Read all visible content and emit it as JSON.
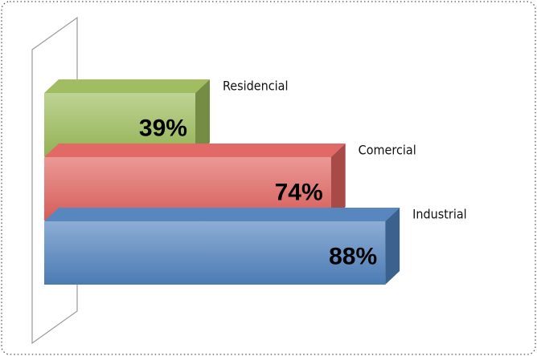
{
  "chart_data": {
    "type": "bar",
    "orientation": "horizontal",
    "three_d": true,
    "categories": [
      "Residencial",
      "Comercial",
      "Industrial"
    ],
    "values": [
      39,
      74,
      88
    ],
    "value_labels": [
      "39%",
      "74%",
      "88%"
    ],
    "colors": [
      "#9bbb59",
      "#e0625e",
      "#4f81bd"
    ]
  }
}
